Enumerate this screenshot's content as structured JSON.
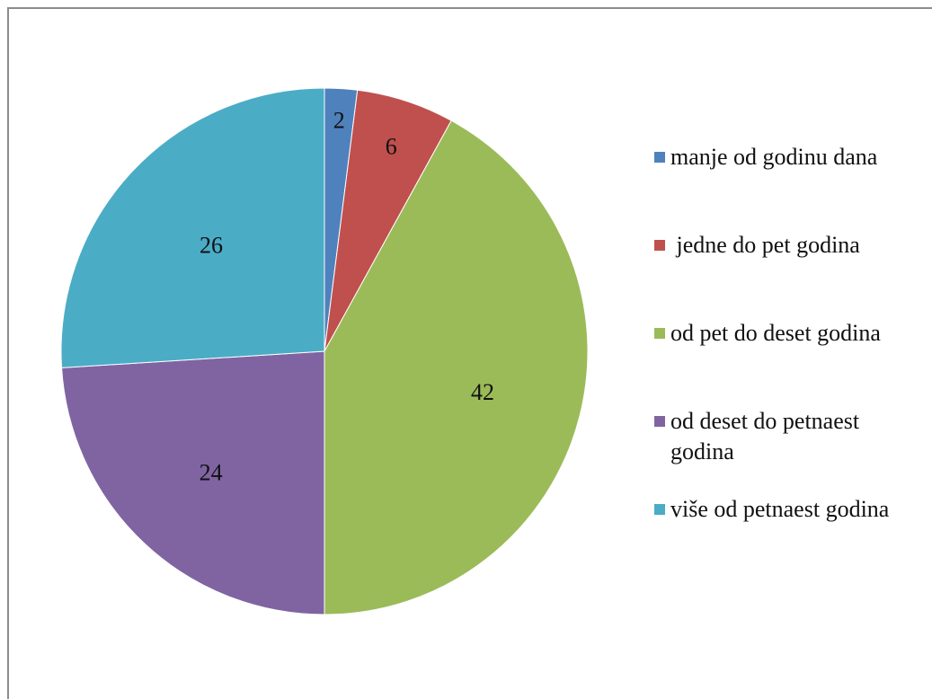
{
  "chart_data": {
    "type": "pie",
    "title": "",
    "categories": [
      "manje od godinu dana",
      " jedne do pet godina",
      "od pet do deset godina",
      "od deset do petnaest godina",
      "više od petnaest godina"
    ],
    "values": [
      2,
      6,
      42,
      24,
      26
    ],
    "colors": [
      "#4f81bd",
      "#c0504d",
      "#9bbb59",
      "#8064a2",
      "#4bacc6"
    ],
    "data_labels": [
      "2",
      "6",
      "42",
      "24",
      "26"
    ],
    "legend_position": "right",
    "start": "top, clockwise"
  }
}
